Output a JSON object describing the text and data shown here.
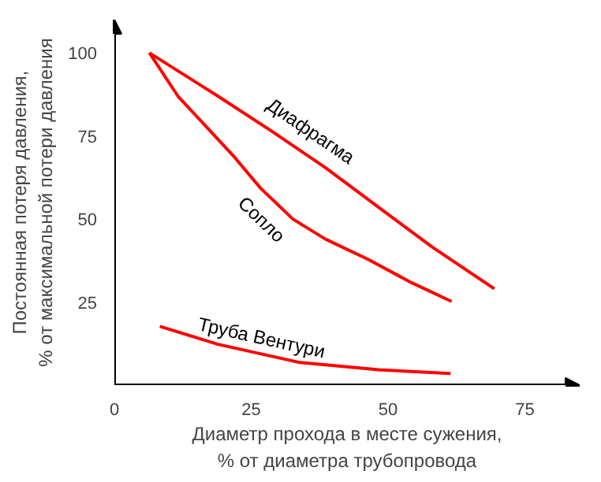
{
  "chart_data": {
    "type": "line",
    "xlabel": "Диаметр прохода в месте сужения,\n% от диаметра трубопровода",
    "ylabel": "Постоянная потеря давления,\n% от максимальной потери давления",
    "xlim": [
      0,
      85
    ],
    "ylim": [
      0,
      110
    ],
    "xticks": [
      0,
      25,
      50,
      75
    ],
    "yticks": [
      25,
      50,
      75,
      100
    ],
    "grid": false,
    "series": [
      {
        "name": "Диафрагма",
        "color": "#ff0000",
        "x": [
          6.4,
          18.9,
          28.7,
          38.5,
          48.3,
          58.1,
          69.4
        ],
        "values": [
          100,
          87,
          76.5,
          65.5,
          53.5,
          41.5,
          29
        ]
      },
      {
        "name": "Сопло",
        "color": "#ff0000",
        "x": [
          6.4,
          11.6,
          21.9,
          26.7,
          32.6,
          38.5,
          46.4,
          54.2,
          61.6
        ],
        "values": [
          100,
          87,
          68.7,
          59.3,
          50,
          44,
          37.8,
          30.9,
          25.2
        ]
      },
      {
        "name": "Труба Вентури",
        "color": "#ff0000",
        "x": [
          8.3,
          18.9,
          33.6,
          48.3,
          61.4
        ],
        "values": [
          17.7,
          12.3,
          6.9,
          4.6,
          3.5
        ]
      }
    ]
  }
}
